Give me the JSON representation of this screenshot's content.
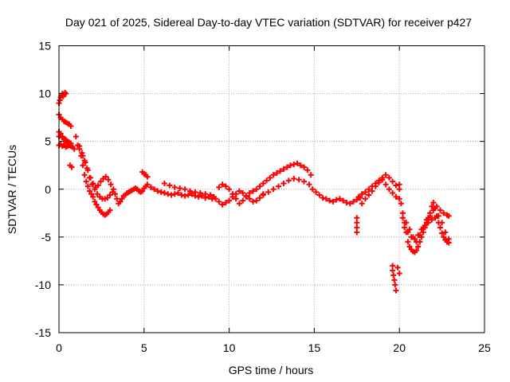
{
  "chart_data": {
    "type": "scatter",
    "title": "Day 021 of 2025, Sidereal Day-to-day VTEC variation (SDTVAR) for receiver p427",
    "xlabel": "GPS time / hours",
    "ylabel": "SDTVAR / TECUs",
    "xlim": [
      0,
      25
    ],
    "ylim": [
      -15,
      15
    ],
    "xticks": [
      0,
      5,
      10,
      15,
      20,
      25
    ],
    "yticks": [
      -15,
      -10,
      -5,
      0,
      5,
      10,
      15
    ],
    "xtick_labels": [
      "0",
      "5",
      "10",
      "15",
      "20",
      "25"
    ],
    "ytick_labels": [
      "-15",
      "-10",
      "-5",
      "0",
      "5",
      "10",
      "15"
    ],
    "grid": true,
    "marker": "+",
    "series": [
      {
        "name": "SDTVAR",
        "color": "#ff0000",
        "x": [
          0.0,
          0.05,
          0.1,
          0.15,
          0.2,
          0.25,
          0.3,
          0.35,
          0.4,
          0.0,
          0.1,
          0.2,
          0.3,
          0.4,
          0.5,
          0.6,
          0.7,
          0.0,
          0.1,
          0.2,
          0.3,
          0.4,
          0.5,
          0.6,
          0.7,
          0.0,
          0.1,
          0.2,
          0.3,
          0.4,
          0.5,
          0.6,
          0.7,
          0.0,
          0.1,
          0.2,
          0.3,
          0.4,
          0.5,
          0.6,
          0.7,
          0.8,
          0.9,
          0.65,
          0.75,
          1.0,
          1.1,
          1.2,
          1.3,
          1.4,
          1.5,
          1.6,
          1.7,
          1.8,
          1.9,
          2.0,
          2.1,
          2.2,
          2.3,
          2.4,
          2.5,
          2.6,
          2.7,
          2.8,
          2.9,
          3.0,
          1.2,
          1.35,
          1.5,
          1.65,
          1.8,
          1.95,
          2.1,
          2.25,
          2.4,
          2.55,
          2.7,
          2.85,
          3.0,
          3.15,
          1.4,
          1.55,
          1.7,
          1.85,
          2.0,
          2.15,
          2.3,
          2.45,
          2.6,
          2.75,
          2.9,
          3.05,
          3.2,
          3.3,
          3.4,
          3.5,
          3.6,
          3.7,
          3.8,
          3.9,
          4.0,
          4.1,
          4.2,
          4.3,
          4.4,
          4.5,
          4.6,
          4.7,
          4.8,
          4.9,
          5.0,
          5.1,
          5.2,
          4.9,
          5.0,
          5.1,
          5.2,
          5.4,
          5.6,
          5.8,
          6.0,
          6.2,
          6.4,
          6.6,
          6.8,
          7.0,
          7.2,
          7.4,
          7.6,
          7.8,
          8.0,
          8.2,
          8.4,
          8.6,
          8.8,
          9.0,
          6.2,
          6.5,
          6.8,
          7.1,
          7.4,
          7.7,
          8.0,
          8.3,
          8.6,
          8.9,
          9.1,
          9.2,
          9.4,
          9.6,
          9.8,
          10.0,
          10.2,
          10.4,
          10.6,
          10.8,
          11.0,
          11.2,
          11.4,
          11.6,
          11.8,
          12.0,
          9.4,
          9.6,
          9.8,
          10.0,
          10.2,
          10.4,
          10.6,
          10.8,
          11.0,
          11.2,
          11.4,
          11.6,
          11.8,
          12.0,
          12.2,
          12.4,
          12.6,
          12.8,
          13.0,
          13.2,
          13.4,
          13.6,
          13.8,
          14.0,
          14.2,
          14.4,
          14.6,
          14.8,
          12.0,
          12.3,
          12.6,
          12.9,
          13.2,
          13.5,
          13.8,
          14.1,
          14.4,
          14.7,
          14.9,
          15.1,
          15.3,
          15.5,
          15.7,
          15.9,
          16.1,
          16.3,
          16.5,
          16.7,
          16.9,
          17.1,
          17.3,
          17.5,
          17.7,
          17.5,
          17.5,
          17.5,
          17.5,
          17.6,
          17.8,
          18.0,
          18.2,
          18.4,
          18.6,
          18.8,
          19.0,
          19.2,
          19.4,
          19.6,
          19.8,
          20.0,
          17.8,
          18.0,
          18.2,
          18.4,
          18.6,
          18.8,
          19.0,
          19.2,
          19.4,
          19.6,
          19.8,
          20.0,
          19.6,
          19.6,
          19.65,
          19.7,
          19.75,
          19.8,
          19.9,
          20.0,
          20.0,
          20.1,
          20.2,
          20.3,
          20.4,
          20.5,
          20.6,
          20.7,
          20.8,
          20.9,
          21.0,
          21.1,
          21.2,
          21.3,
          21.4,
          21.5,
          21.6,
          21.7,
          21.8,
          21.9,
          22.0,
          22.1,
          22.2,
          22.3,
          22.4,
          22.5,
          22.6,
          22.7,
          22.8,
          22.9,
          20.2,
          20.4,
          20.6,
          20.8,
          21.0,
          21.2,
          21.4,
          21.6,
          21.8,
          22.0,
          22.2,
          22.4,
          22.6,
          22.8,
          22.9,
          20.3,
          20.5,
          20.7,
          20.9,
          21.1,
          21.3,
          21.5,
          21.7,
          21.9,
          22.1,
          22.3,
          22.5,
          22.7,
          22.9
        ],
        "y": [
          9.0,
          9.3,
          9.6,
          9.8,
          10.0,
          9.7,
          9.9,
          10.1,
          10.0,
          7.8,
          7.5,
          7.3,
          7.1,
          7.0,
          6.9,
          6.8,
          6.6,
          6.0,
          5.8,
          5.5,
          5.3,
          5.2,
          5.0,
          4.9,
          4.8,
          4.6,
          4.7,
          4.5,
          4.6,
          4.4,
          4.5,
          4.6,
          4.5,
          5.5,
          5.6,
          5.4,
          5.2,
          5.0,
          4.9,
          4.7,
          4.6,
          4.4,
          4.2,
          2.5,
          2.3,
          5.5,
          4.6,
          4.2,
          3.5,
          2.5,
          1.5,
          0.8,
          0.3,
          -0.2,
          -0.5,
          -0.8,
          -1.3,
          -1.6,
          -1.9,
          -2.2,
          -2.4,
          -2.6,
          -2.7,
          -2.6,
          -2.4,
          -2.2,
          4.5,
          3.8,
          3.0,
          2.2,
          1.2,
          0.5,
          0.0,
          -0.5,
          -0.8,
          -1.0,
          -1.0,
          -0.9,
          -0.6,
          -0.3,
          3.5,
          2.8,
          2.0,
          1.2,
          0.6,
          0.2,
          0.4,
          0.8,
          1.1,
          1.3,
          1.0,
          0.5,
          0.0,
          -0.5,
          -1.0,
          -1.5,
          -1.3,
          -1.0,
          -0.7,
          -0.6,
          -0.4,
          -0.3,
          -0.2,
          -0.1,
          0.0,
          0.1,
          0.0,
          -0.2,
          -0.3,
          -0.2,
          0.1,
          0.3,
          0.5,
          1.8,
          1.6,
          1.5,
          1.3,
          0.2,
          0.0,
          -0.2,
          -0.3,
          -0.4,
          -0.5,
          -0.6,
          -0.5,
          -0.4,
          -0.6,
          -0.7,
          -0.6,
          -0.5,
          -0.7,
          -0.8,
          -0.7,
          -0.9,
          -0.8,
          -1.0,
          0.6,
          0.4,
          0.2,
          0.1,
          0.0,
          -0.2,
          -0.3,
          -0.4,
          -0.5,
          -0.6,
          -0.8,
          -1.0,
          -1.3,
          -1.6,
          -1.4,
          -1.2,
          -0.8,
          -0.5,
          -0.2,
          -0.4,
          -0.7,
          -1.0,
          -1.3,
          -1.2,
          -0.9,
          -0.6,
          0.2,
          0.5,
          0.3,
          0.0,
          -0.5,
          -1.0,
          -1.5,
          -1.2,
          -0.8,
          -0.4,
          -0.2,
          0.0,
          0.3,
          0.6,
          0.9,
          1.2,
          1.5,
          1.7,
          1.9,
          2.1,
          2.3,
          2.5,
          2.6,
          2.7,
          2.5,
          2.3,
          2.0,
          1.5,
          -0.5,
          -0.3,
          0.0,
          0.3,
          0.6,
          0.9,
          1.1,
          1.0,
          0.8,
          0.5,
          0.0,
          -0.3,
          -0.6,
          -0.9,
          -1.0,
          -1.2,
          -1.3,
          -1.1,
          -1.0,
          -1.2,
          -1.4,
          -1.5,
          -1.3,
          -1.1,
          -0.9,
          -3.0,
          -3.5,
          -4.0,
          -4.5,
          -0.8,
          -0.5,
          -0.3,
          0.0,
          0.3,
          0.6,
          0.9,
          1.2,
          1.5,
          1.2,
          0.8,
          0.4,
          0.0,
          -1.5,
          -1.0,
          -0.6,
          -0.2,
          0.3,
          0.7,
          1.0,
          0.5,
          0.0,
          -0.4,
          -0.8,
          -1.0,
          -8.0,
          -8.5,
          -9.0,
          -9.5,
          -10.0,
          -10.6,
          -8.2,
          -8.8,
          0.5,
          -1.5,
          -2.5,
          -3.5,
          -4.5,
          -5.5,
          -6.0,
          -6.3,
          -6.5,
          -6.6,
          -6.4,
          -6.0,
          -5.5,
          -5.0,
          -4.5,
          -4.0,
          -3.5,
          -3.0,
          -2.5,
          -1.8,
          -1.4,
          -2.0,
          -2.8,
          -3.5,
          -4.0,
          -4.6,
          -5.0,
          -5.3,
          -5.5,
          -5.6,
          -3.0,
          -3.5,
          -4.2,
          -5.0,
          -5.5,
          -4.8,
          -4.0,
          -3.2,
          -2.8,
          -2.2,
          -1.8,
          -2.2,
          -2.5,
          -2.7,
          -2.8,
          -4.0,
          -4.5,
          -5.0,
          -5.2,
          -4.8,
          -4.2,
          -3.8,
          -3.5,
          -3.2,
          -3.0,
          -2.8,
          -3.5,
          -4.5,
          -5.2
        ]
      }
    ]
  }
}
